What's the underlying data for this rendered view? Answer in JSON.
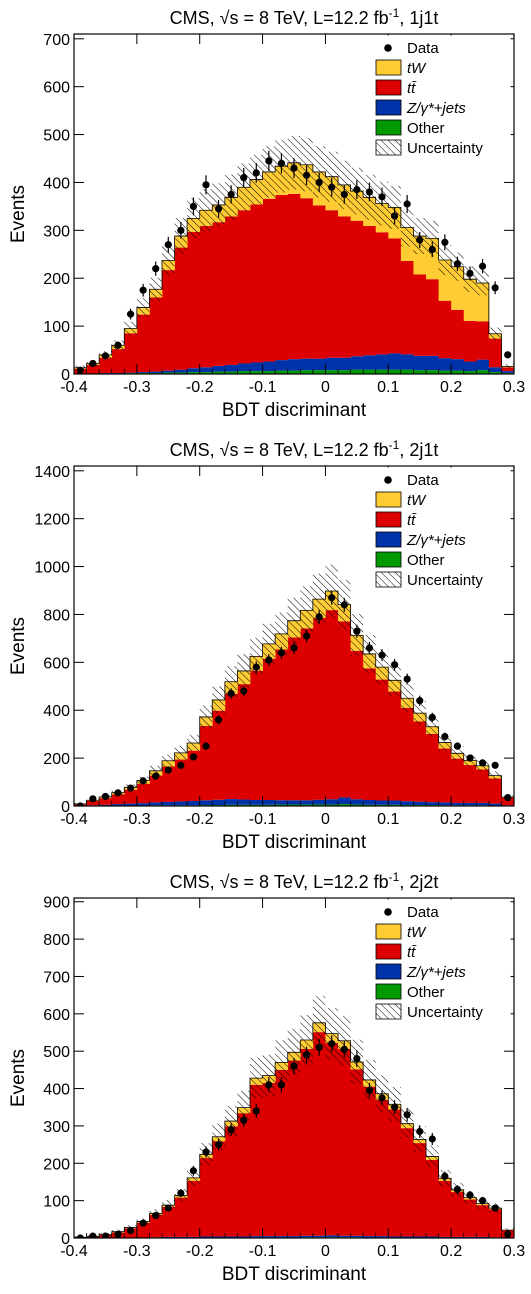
{
  "colors": {
    "tw": "#ffcc33",
    "tt": "#dd0000",
    "zjets": "#0033aa",
    "other": "#009900",
    "data": "#000000"
  },
  "chart_data": [
    {
      "type": "bar",
      "title_main": "CMS, √s = 8 TeV, L=12.2 fb",
      "title_sup": "-1",
      "title_suffix": ", 1j1t",
      "xlabel": "BDT discriminant",
      "ylabel": "Events",
      "xlim": [
        -0.4,
        0.3
      ],
      "ylim": [
        0,
        710
      ],
      "xticks": [
        -0.4,
        -0.3,
        -0.2,
        -0.1,
        0,
        0.1,
        0.2,
        0.3
      ],
      "xtick_labels": [
        "-0.4",
        "-0.3",
        "-0.2",
        "-0.1",
        "0",
        "0.1",
        "0.2",
        "0.3"
      ],
      "yticks": [
        0,
        100,
        200,
        300,
        400,
        500,
        600,
        700
      ],
      "ytick_labels": [
        "0",
        "100",
        "200",
        "300",
        "400",
        "500",
        "600",
        "700"
      ],
      "legend": [
        "Data",
        "tW",
        "tt̄",
        "Z/γ*+jets",
        "Other",
        "Uncertainty"
      ],
      "x_edges": [
        -0.4,
        -0.38,
        -0.36,
        -0.34,
        -0.32,
        -0.3,
        -0.28,
        -0.26,
        -0.24,
        -0.22,
        -0.2,
        -0.18,
        -0.16,
        -0.14,
        -0.12,
        -0.1,
        -0.08,
        -0.06,
        -0.04,
        -0.02,
        0,
        0.02,
        0.04,
        0.06,
        0.08,
        0.1,
        0.12,
        0.14,
        0.16,
        0.18,
        0.2,
        0.22,
        0.24,
        0.26,
        0.28,
        0.3
      ],
      "series": [
        {
          "name": "Other",
          "values": [
            1,
            1,
            1,
            1,
            2,
            2,
            2,
            3,
            3,
            4,
            4,
            5,
            5,
            6,
            6,
            6,
            7,
            7,
            8,
            8,
            8,
            8,
            9,
            9,
            9,
            9,
            9,
            8,
            8,
            7,
            7,
            6,
            8,
            4,
            2
          ]
        },
        {
          "name": "Z/γ*+jets",
          "values": [
            0,
            0,
            1,
            1,
            1,
            2,
            3,
            4,
            6,
            8,
            10,
            12,
            14,
            16,
            18,
            20,
            22,
            24,
            24,
            24,
            26,
            26,
            28,
            30,
            32,
            34,
            32,
            30,
            30,
            26,
            24,
            20,
            22,
            10,
            4
          ]
        },
        {
          "name": "tt̄",
          "values": [
            10,
            18,
            32,
            50,
            82,
            120,
            155,
            210,
            255,
            285,
            295,
            300,
            310,
            320,
            330,
            340,
            345,
            345,
            335,
            320,
            308,
            295,
            283,
            270,
            255,
            240,
            195,
            170,
            160,
            120,
            103,
            85,
            80,
            60,
            8
          ]
        },
        {
          "name": "tW",
          "values": [
            2,
            3,
            6,
            8,
            10,
            15,
            17,
            20,
            24,
            28,
            33,
            36,
            40,
            48,
            52,
            56,
            60,
            65,
            70,
            70,
            70,
            66,
            62,
            60,
            60,
            65,
            70,
            80,
            85,
            85,
            90,
            87,
            80,
            10,
            2
          ]
        },
        {
          "name": "Data",
          "values": [
            8,
            22,
            38,
            60,
            125,
            175,
            220,
            270,
            300,
            350,
            395,
            345,
            375,
            410,
            420,
            445,
            440,
            430,
            415,
            400,
            390,
            375,
            385,
            380,
            370,
            330,
            355,
            280,
            260,
            275,
            230,
            210,
            225,
            180,
            40
          ]
        }
      ]
    },
    {
      "type": "bar",
      "title_main": "CMS, √s = 8 TeV, L=12.2 fb",
      "title_sup": "-1",
      "title_suffix": ", 2j1t",
      "xlabel": "BDT discriminant",
      "ylabel": "Events",
      "xlim": [
        -0.4,
        0.3
      ],
      "ylim": [
        0,
        1420
      ],
      "xticks": [
        -0.4,
        -0.3,
        -0.2,
        -0.1,
        0,
        0.1,
        0.2,
        0.3
      ],
      "xtick_labels": [
        "-0.4",
        "-0.3",
        "-0.2",
        "-0.1",
        "0",
        "0.1",
        "0.2",
        "0.3"
      ],
      "yticks": [
        0,
        200,
        400,
        600,
        800,
        1000,
        1200,
        1400
      ],
      "ytick_labels": [
        "0",
        "200",
        "400",
        "600",
        "800",
        "1000",
        "1200",
        "1400"
      ],
      "legend": [
        "Data",
        "tW",
        "tt̄",
        "Z/γ*+jets",
        "Other",
        "Uncertainty"
      ],
      "x_edges": [
        -0.4,
        -0.38,
        -0.36,
        -0.34,
        -0.32,
        -0.3,
        -0.28,
        -0.26,
        -0.24,
        -0.22,
        -0.2,
        -0.18,
        -0.16,
        -0.14,
        -0.12,
        -0.1,
        -0.08,
        -0.06,
        -0.04,
        -0.02,
        0,
        0.02,
        0.04,
        0.06,
        0.08,
        0.1,
        0.12,
        0.14,
        0.16,
        0.18,
        0.2,
        0.22,
        0.24,
        0.26,
        0.28,
        0.3
      ],
      "series": [
        {
          "name": "Other",
          "values": [
            1,
            1,
            1,
            2,
            2,
            2,
            3,
            3,
            3,
            3,
            4,
            4,
            5,
            5,
            5,
            5,
            6,
            6,
            6,
            6,
            6,
            8,
            6,
            5,
            5,
            5,
            4,
            4,
            4,
            3,
            3,
            3,
            3,
            2,
            1
          ]
        },
        {
          "name": "Z/γ*+jets",
          "values": [
            1,
            2,
            4,
            6,
            8,
            10,
            12,
            14,
            16,
            18,
            20,
            22,
            24,
            22,
            20,
            20,
            18,
            18,
            18,
            20,
            22,
            28,
            22,
            20,
            18,
            18,
            16,
            14,
            12,
            12,
            10,
            10,
            10,
            8,
            2
          ]
        },
        {
          "name": "tt̄",
          "values": [
            5,
            18,
            28,
            40,
            58,
            80,
            112,
            148,
            175,
            210,
            310,
            372,
            440,
            482,
            540,
            590,
            630,
            680,
            718,
            760,
            790,
            735,
            620,
            550,
            505,
            455,
            390,
            335,
            285,
            225,
            185,
            158,
            140,
            105,
            32
          ]
        },
        {
          "name": "tW",
          "values": [
            2,
            3,
            5,
            8,
            10,
            15,
            20,
            24,
            28,
            32,
            38,
            45,
            50,
            55,
            60,
            62,
            65,
            70,
            75,
            78,
            80,
            70,
            65,
            60,
            52,
            47,
            40,
            35,
            30,
            25,
            22,
            19,
            15,
            12,
            2
          ]
        },
        {
          "name": "Data",
          "values": [
            0,
            30,
            40,
            55,
            75,
            105,
            125,
            150,
            170,
            205,
            250,
            360,
            470,
            480,
            580,
            610,
            640,
            660,
            710,
            790,
            870,
            840,
            730,
            660,
            630,
            590,
            530,
            440,
            370,
            290,
            250,
            200,
            180,
            170,
            35
          ]
        }
      ]
    },
    {
      "type": "bar",
      "title_main": "CMS, √s = 8 TeV, L=12.2 fb",
      "title_sup": "-1",
      "title_suffix": ", 2j2t",
      "xlabel": "BDT discriminant",
      "ylabel": "Events",
      "xlim": [
        -0.4,
        0.3
      ],
      "ylim": [
        0,
        910
      ],
      "xticks": [
        -0.4,
        -0.3,
        -0.2,
        -0.1,
        0,
        0.1,
        0.2,
        0.3
      ],
      "xtick_labels": [
        "-0.4",
        "-0.3",
        "-0.2",
        "-0.1",
        "0",
        "0.1",
        "0.2",
        "0.3"
      ],
      "yticks": [
        0,
        100,
        200,
        300,
        400,
        500,
        600,
        700,
        800,
        900
      ],
      "ytick_labels": [
        "0",
        "100",
        "200",
        "300",
        "400",
        "500",
        "600",
        "700",
        "800",
        "900"
      ],
      "legend": [
        "Data",
        "tW",
        "tt̄",
        "Z/γ*+jets",
        "Other",
        "Uncertainty"
      ],
      "x_edges": [
        -0.4,
        -0.38,
        -0.36,
        -0.34,
        -0.32,
        -0.3,
        -0.28,
        -0.26,
        -0.24,
        -0.22,
        -0.2,
        -0.18,
        -0.16,
        -0.14,
        -0.12,
        -0.1,
        -0.08,
        -0.06,
        -0.04,
        -0.02,
        0,
        0.02,
        0.04,
        0.06,
        0.08,
        0.1,
        0.12,
        0.14,
        0.16,
        0.18,
        0.2,
        0.22,
        0.24,
        0.26,
        0.28,
        0.3
      ],
      "series": [
        {
          "name": "Other",
          "values": [
            0,
            0,
            0,
            0,
            0,
            0,
            1,
            1,
            1,
            1,
            1,
            1,
            1,
            1,
            1,
            1,
            1,
            1,
            2,
            2,
            2,
            2,
            2,
            1,
            1,
            1,
            1,
            1,
            1,
            1,
            1,
            1,
            1,
            1,
            0
          ]
        },
        {
          "name": "Z/γ*+jets",
          "values": [
            0,
            0,
            0,
            0,
            1,
            1,
            1,
            2,
            2,
            2,
            3,
            3,
            3,
            3,
            4,
            4,
            4,
            4,
            4,
            4,
            5,
            4,
            4,
            4,
            4,
            3,
            3,
            3,
            3,
            2,
            2,
            2,
            2,
            1,
            0
          ]
        },
        {
          "name": "tt̄",
          "values": [
            2,
            4,
            8,
            15,
            25,
            40,
            60,
            80,
            105,
            150,
            210,
            255,
            295,
            330,
            405,
            410,
            445,
            470,
            500,
            545,
            515,
            500,
            445,
            400,
            365,
            340,
            290,
            250,
            205,
            150,
            120,
            100,
            85,
            75,
            20
          ]
        },
        {
          "name": "tW",
          "values": [
            0,
            0,
            1,
            2,
            2,
            3,
            4,
            5,
            6,
            8,
            10,
            12,
            14,
            15,
            18,
            20,
            20,
            22,
            24,
            25,
            25,
            22,
            20,
            18,
            16,
            14,
            12,
            10,
            9,
            7,
            6,
            5,
            4,
            3,
            1
          ]
        },
        {
          "name": "Data",
          "values": [
            0,
            5,
            5,
            10,
            20,
            40,
            60,
            80,
            120,
            180,
            230,
            250,
            290,
            315,
            340,
            410,
            410,
            460,
            490,
            510,
            520,
            505,
            480,
            395,
            375,
            350,
            330,
            285,
            265,
            165,
            130,
            115,
            100,
            80,
            10
          ]
        }
      ]
    }
  ]
}
